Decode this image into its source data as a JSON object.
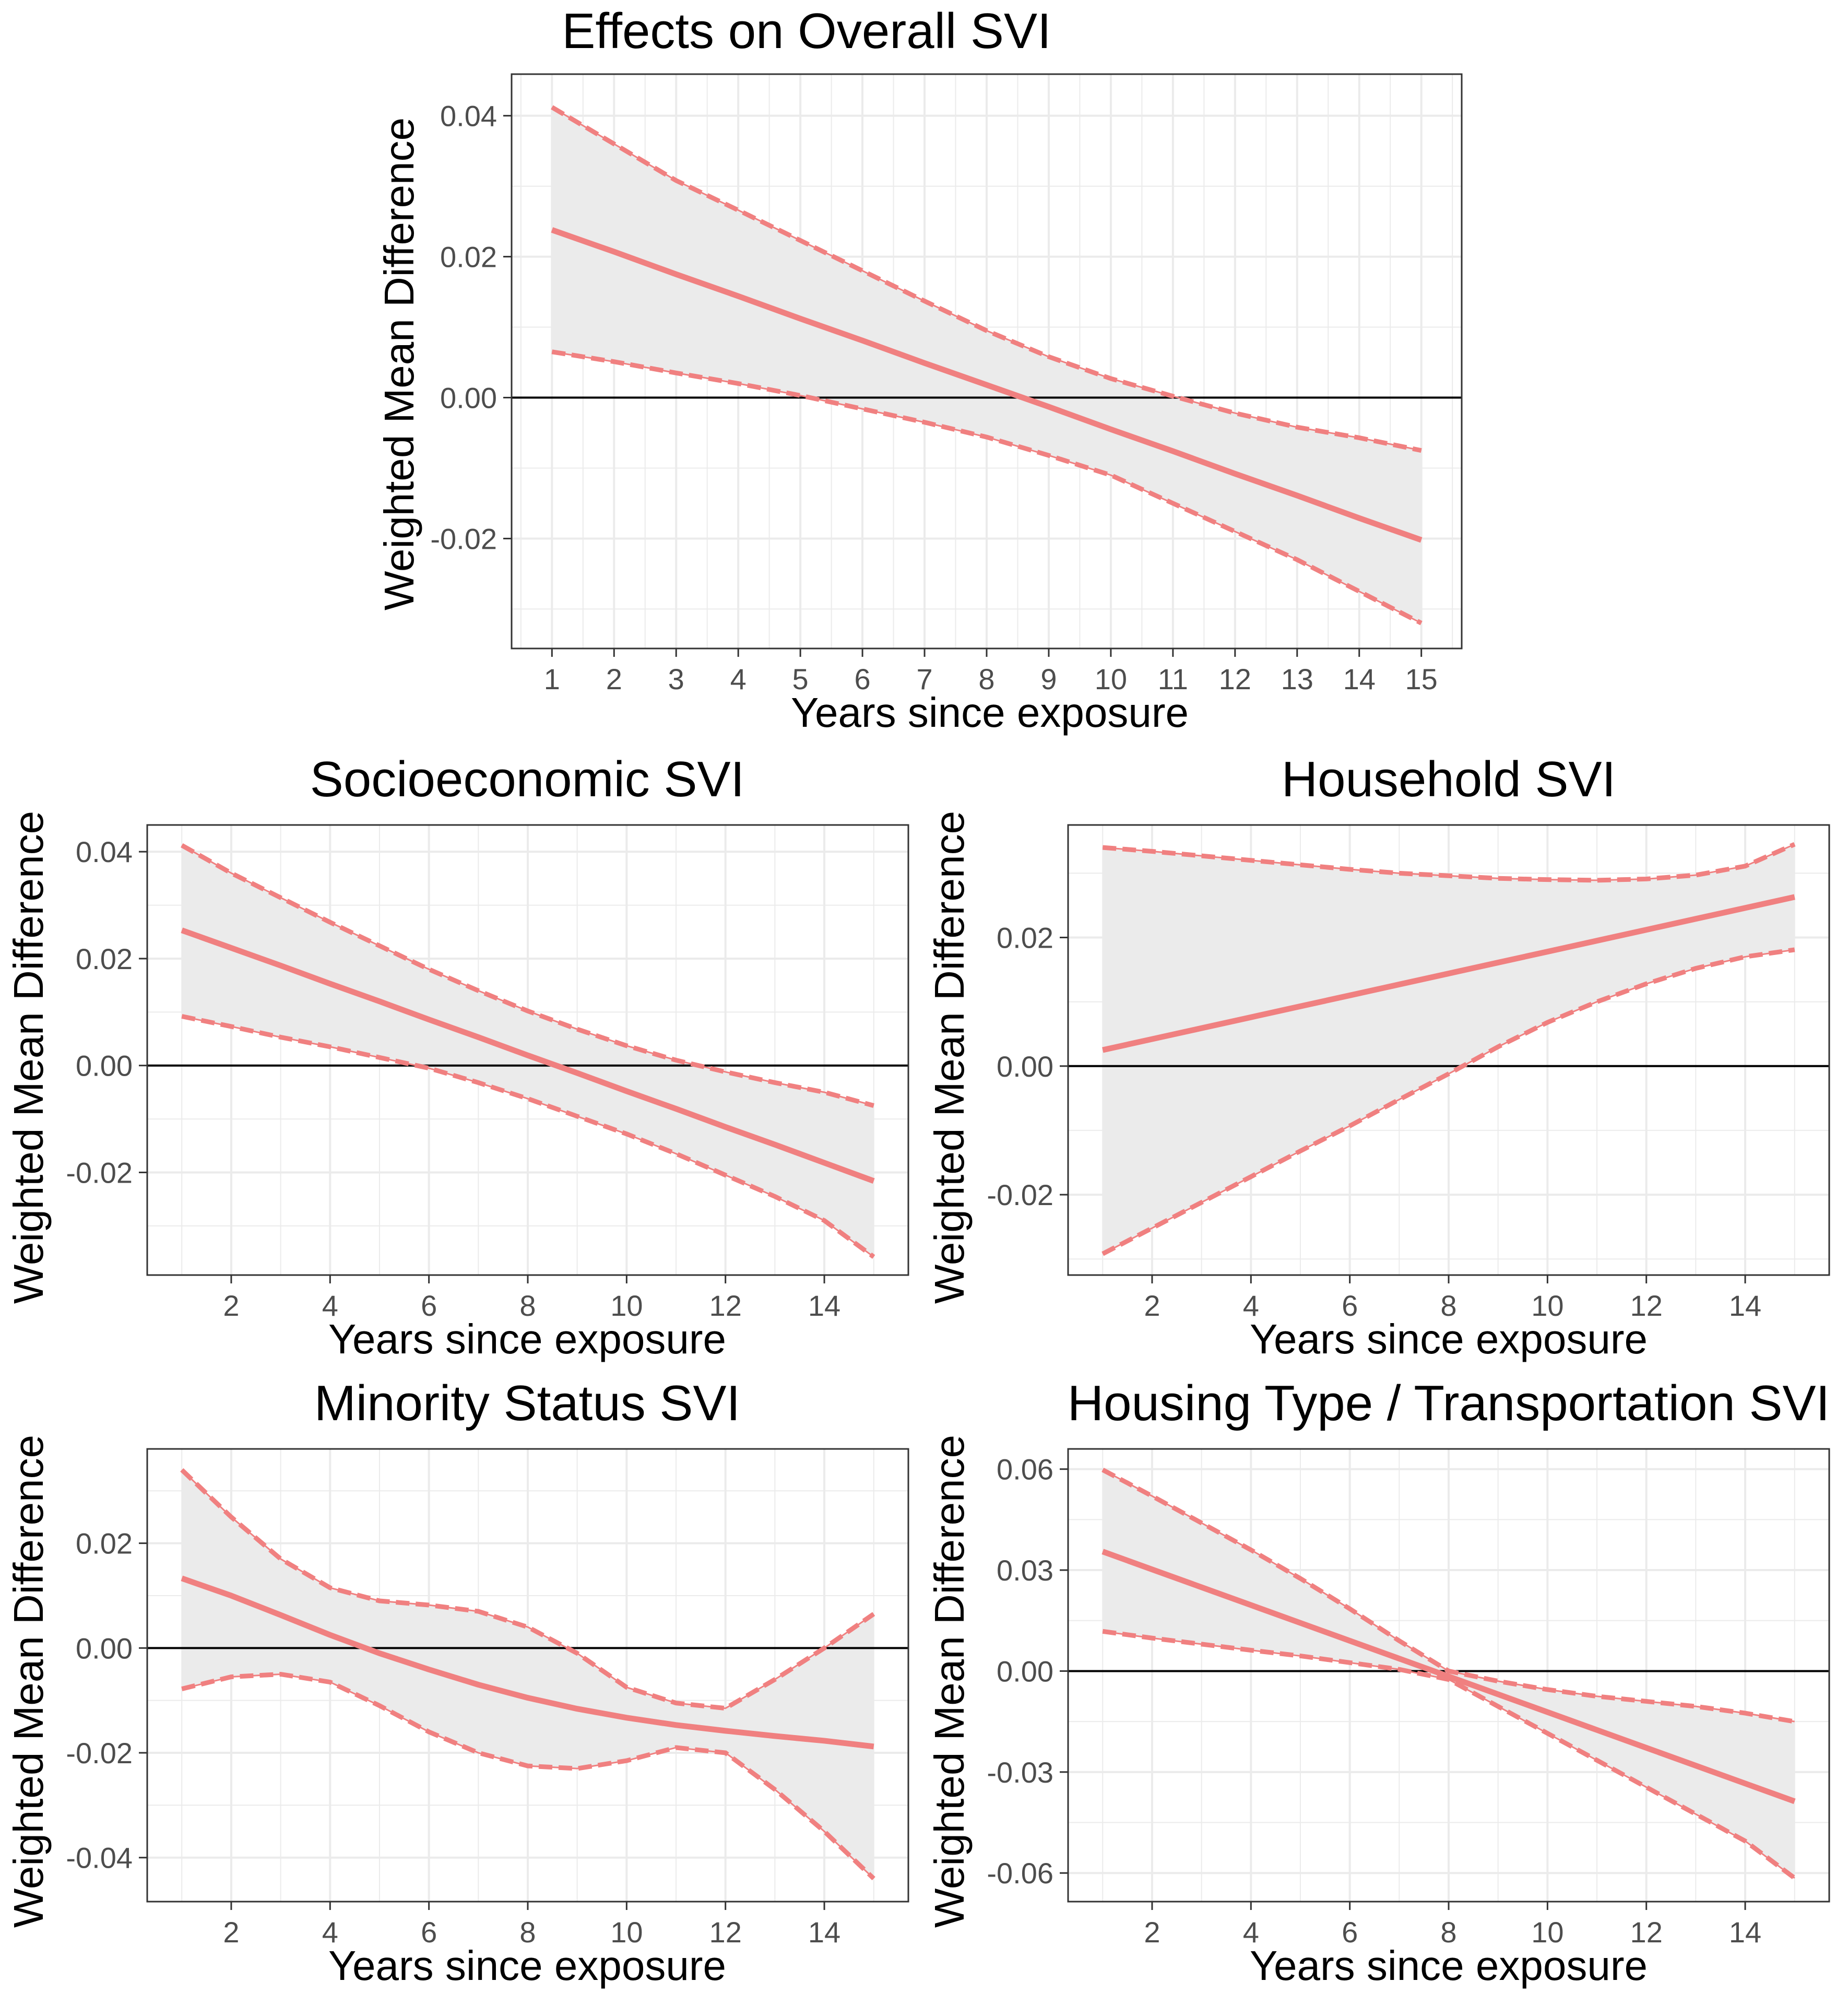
{
  "colors": {
    "line": "#f08080",
    "band": "#ebebeb",
    "grid": "#ebebeb",
    "zero_line": "#000000",
    "panel_border": "#333333",
    "tick_text": "#4d4d4d"
  },
  "chart_data": [
    {
      "type": "line",
      "title": "Effects on Overall SVI",
      "xlabel": "Years since exposure",
      "ylabel": "Weighted Mean Difference",
      "xlim": [
        0.35,
        15.65
      ],
      "ylim": [
        -0.0356,
        0.0459
      ],
      "xticks": [
        1,
        2,
        3,
        4,
        5,
        6,
        7,
        8,
        9,
        10,
        11,
        12,
        13,
        14,
        15
      ],
      "yticks": [
        -0.02,
        0.0,
        0.02,
        0.04
      ],
      "ytick_labels": [
        "-0.02",
        "0.00",
        "0.02",
        "0.04"
      ],
      "x": [
        1,
        2,
        3,
        4,
        5,
        6,
        7,
        8,
        9,
        10,
        11,
        12,
        13,
        14,
        15
      ],
      "series": [
        {
          "role": "estimate",
          "values": [
            0.0238,
            0.0207,
            0.0175,
            0.0144,
            0.0112,
            0.0081,
            0.0049,
            0.0018,
            -0.0013,
            -0.0045,
            -0.0076,
            -0.0108,
            -0.0139,
            -0.0171,
            -0.0202
          ]
        },
        {
          "role": "upper",
          "values": [
            0.0412,
            0.036,
            0.0308,
            0.0266,
            0.0223,
            0.018,
            0.0137,
            0.0095,
            0.0058,
            0.0027,
            0.0002,
            -0.0022,
            -0.0042,
            -0.0057,
            -0.0075
          ]
        },
        {
          "role": "lower",
          "values": [
            0.0065,
            0.0051,
            0.0035,
            0.002,
            0.0003,
            -0.0016,
            -0.0035,
            -0.0056,
            -0.0082,
            -0.011,
            -0.015,
            -0.019,
            -0.023,
            -0.0275,
            -0.032
          ]
        }
      ]
    },
    {
      "type": "line",
      "title": "Socioeconomic SVI",
      "xlabel": "Years since exposure",
      "ylabel": "Weighted Mean Difference",
      "xlim": [
        0.3,
        15.7
      ],
      "ylim": [
        -0.0392,
        0.045
      ],
      "xticks": [
        2,
        4,
        6,
        8,
        10,
        12,
        14
      ],
      "yticks": [
        -0.02,
        0.0,
        0.02,
        0.04
      ],
      "ytick_labels": [
        "-0.02",
        "0.00",
        "0.02",
        "0.04"
      ],
      "x": [
        1,
        2,
        3,
        4,
        5,
        6,
        7,
        8,
        9,
        10,
        11,
        12,
        13,
        14,
        15
      ],
      "series": [
        {
          "role": "estimate",
          "values": [
            0.0253,
            0.022,
            0.0187,
            0.0153,
            0.012,
            0.0086,
            0.0053,
            0.0019,
            -0.0014,
            -0.0048,
            -0.0081,
            -0.0115,
            -0.0148,
            -0.0182,
            -0.0216
          ]
        },
        {
          "role": "upper",
          "values": [
            0.0412,
            0.036,
            0.0314,
            0.0268,
            0.0224,
            0.018,
            0.014,
            0.0102,
            0.0068,
            0.0037,
            0.001,
            -0.0012,
            -0.0032,
            -0.005,
            -0.0075
          ]
        },
        {
          "role": "lower",
          "values": [
            0.0092,
            0.0073,
            0.0053,
            0.0035,
            0.0015,
            -0.0005,
            -0.0032,
            -0.0062,
            -0.0095,
            -0.0128,
            -0.0165,
            -0.0205,
            -0.0245,
            -0.029,
            -0.0358
          ]
        }
      ]
    },
    {
      "type": "line",
      "title": "Household SVI",
      "xlabel": "Years since exposure",
      "ylabel": "Weighted Mean Difference",
      "xlim": [
        0.3,
        15.7
      ],
      "ylim": [
        -0.0325,
        0.0375
      ],
      "xticks": [
        2,
        4,
        6,
        8,
        10,
        12,
        14
      ],
      "yticks": [
        -0.02,
        0.0,
        0.02
      ],
      "ytick_labels": [
        "-0.02",
        "0.00",
        "0.02"
      ],
      "x": [
        1,
        2,
        3,
        4,
        5,
        6,
        7,
        8,
        9,
        10,
        11,
        12,
        13,
        14,
        15
      ],
      "series": [
        {
          "role": "estimate",
          "values": [
            0.0025,
            0.0042,
            0.0059,
            0.0076,
            0.0093,
            0.011,
            0.0127,
            0.0144,
            0.0161,
            0.0178,
            0.0195,
            0.0212,
            0.0229,
            0.0246,
            0.0263
          ]
        },
        {
          "role": "upper",
          "values": [
            0.034,
            0.0334,
            0.0327,
            0.032,
            0.0313,
            0.0306,
            0.03,
            0.0296,
            0.0292,
            0.029,
            0.0289,
            0.0291,
            0.0297,
            0.0311,
            0.0345
          ]
        },
        {
          "role": "lower",
          "values": [
            -0.0292,
            -0.0252,
            -0.0212,
            -0.0172,
            -0.0132,
            -0.0093,
            -0.0052,
            -0.0012,
            0.003,
            0.0068,
            0.01,
            0.0128,
            0.0152,
            0.017,
            0.0181
          ]
        }
      ]
    },
    {
      "type": "line",
      "title": "Minority Status SVI",
      "xlabel": "Years since exposure",
      "ylabel": "Weighted Mean Difference",
      "xlim": [
        0.3,
        15.7
      ],
      "ylim": [
        -0.0484,
        0.038
      ],
      "xticks": [
        2,
        4,
        6,
        8,
        10,
        12,
        14
      ],
      "yticks": [
        -0.04,
        -0.02,
        0.0,
        0.02
      ],
      "ytick_labels": [
        "-0.04",
        "-0.02",
        "0.00",
        "0.02"
      ],
      "x": [
        1,
        2,
        3,
        4,
        5,
        6,
        7,
        8,
        9,
        10,
        11,
        12,
        13,
        14,
        15
      ],
      "series": [
        {
          "role": "estimate",
          "values": [
            0.0133,
            0.01,
            0.0063,
            0.0025,
            -0.001,
            -0.0041,
            -0.007,
            -0.0095,
            -0.0116,
            -0.0133,
            -0.0147,
            -0.0158,
            -0.0168,
            -0.0177,
            -0.0188
          ]
        },
        {
          "role": "upper",
          "values": [
            0.034,
            0.025,
            0.017,
            0.0115,
            0.009,
            0.0082,
            0.007,
            0.004,
            -0.001,
            -0.0075,
            -0.0105,
            -0.0115,
            -0.006,
            0.0,
            0.0065
          ]
        },
        {
          "role": "lower",
          "values": [
            -0.0078,
            -0.0055,
            -0.005,
            -0.0065,
            -0.011,
            -0.016,
            -0.02,
            -0.0225,
            -0.023,
            -0.0215,
            -0.019,
            -0.02,
            -0.027,
            -0.035,
            -0.044
          ]
        }
      ]
    },
    {
      "type": "line",
      "title": "Housing Type / Transportation SVI",
      "xlabel": "Years since exposure",
      "ylabel": "Weighted Mean Difference",
      "xlim": [
        0.3,
        15.7
      ],
      "ylim": [
        -0.0685,
        0.066
      ],
      "xticks": [
        2,
        4,
        6,
        8,
        10,
        12,
        14
      ],
      "yticks": [
        -0.06,
        -0.03,
        0.0,
        0.03,
        0.06
      ],
      "ytick_labels": [
        "-0.06",
        "-0.03",
        "0.00",
        "0.03",
        "0.06"
      ],
      "x": [
        1,
        2,
        3,
        4,
        5,
        6,
        7,
        8,
        9,
        10,
        11,
        12,
        13,
        14,
        15
      ],
      "series": [
        {
          "role": "estimate",
          "values": [
            0.0355,
            0.0302,
            0.0249,
            0.0196,
            0.0143,
            0.009,
            0.0037,
            -0.0016,
            -0.0069,
            -0.0122,
            -0.0175,
            -0.0228,
            -0.0281,
            -0.0334,
            -0.0387
          ]
        },
        {
          "role": "upper",
          "values": [
            0.0598,
            0.052,
            0.044,
            0.036,
            0.0275,
            0.0185,
            0.009,
            0.0,
            -0.003,
            -0.0055,
            -0.0075,
            -0.009,
            -0.0105,
            -0.0125,
            -0.015
          ]
        },
        {
          "role": "lower",
          "values": [
            0.0118,
            0.0098,
            0.008,
            0.0062,
            0.0045,
            0.0025,
            0.0005,
            -0.0025,
            -0.0105,
            -0.0185,
            -0.0265,
            -0.0345,
            -0.0425,
            -0.0505,
            -0.0615
          ]
        }
      ]
    }
  ]
}
